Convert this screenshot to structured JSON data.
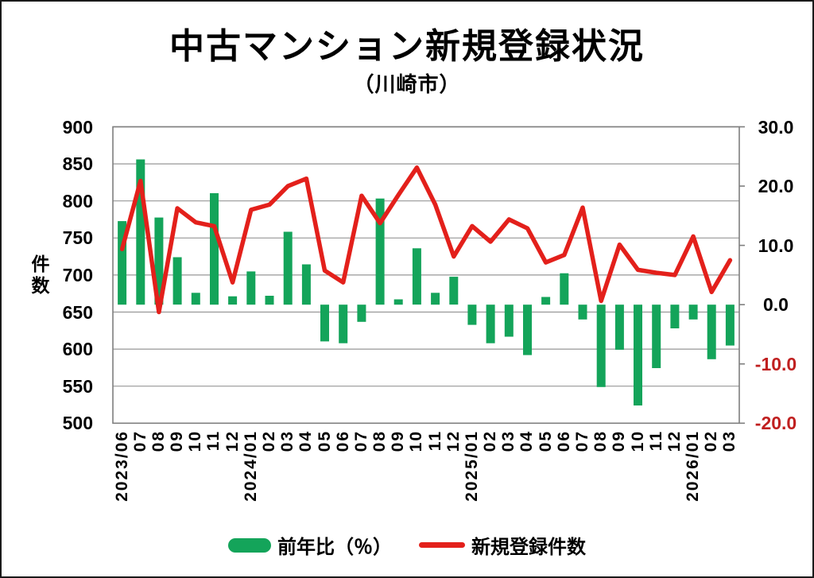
{
  "title": "中古マンション新規登録状況",
  "subtitle": "（川崎市）",
  "colors": {
    "bar_green": "#14a45a",
    "line_red": "#e3201b",
    "negative_tick_red": "#c02020",
    "gridline": "#979797",
    "plot_border": "#7f7f7f"
  },
  "left_axis": {
    "label": "件数",
    "tick_labels": [
      "900",
      "850",
      "800",
      "750",
      "700",
      "650",
      "600",
      "550",
      "500"
    ],
    "min": 500,
    "max": 900
  },
  "right_axis": {
    "tick_labels": [
      "30.0",
      "20.0",
      "10.0",
      "0.0",
      "-10.0",
      "-20.0"
    ],
    "tick_values": [
      30,
      20,
      10,
      0,
      -10,
      -20
    ],
    "min": -20,
    "max": 30
  },
  "legend": [
    {
      "label": "前年比（％）",
      "type": "bar"
    },
    {
      "label": "新規登録件数",
      "type": "line"
    }
  ],
  "chart_data": {
    "type": "bar+line combo",
    "categories": [
      "2023/06",
      "07",
      "08",
      "09",
      "10",
      "11",
      "12",
      "2024/01",
      "02",
      "03",
      "04",
      "05",
      "06",
      "07",
      "08",
      "09",
      "10",
      "11",
      "12",
      "2025/01",
      "02",
      "03",
      "04",
      "05",
      "06",
      "07",
      "08",
      "09",
      "10",
      "11",
      "12",
      "2026/01",
      "02",
      "03"
    ],
    "series": [
      {
        "name": "前年比（％）",
        "type": "bar",
        "axis": "right",
        "values": [
          14.1,
          24.5,
          14.7,
          8.0,
          2.0,
          18.8,
          1.4,
          5.6,
          1.5,
          12.3,
          6.8,
          -6.2,
          -6.5,
          -2.9,
          17.9,
          0.9,
          9.5,
          2.0,
          4.7,
          -3.4,
          -6.5,
          -5.4,
          -8.5,
          1.3,
          5.3,
          -2.5,
          -13.9,
          -7.6,
          -17.0,
          -10.7,
          -4.0,
          -2.5,
          -9.2,
          -6.9
        ]
      },
      {
        "name": "新規登録件数",
        "type": "line",
        "axis": "left",
        "values": [
          735,
          827,
          650,
          790,
          771,
          766,
          690,
          788,
          795,
          820,
          830,
          706,
          690,
          807,
          770,
          808,
          845,
          795,
          725,
          766,
          745,
          775,
          763,
          717,
          727,
          791,
          665,
          741,
          707,
          703,
          700,
          752,
          677,
          720
        ]
      }
    ],
    "left_ylim": [
      500,
      900
    ],
    "right_ylim": [
      -20.0,
      30.0
    ],
    "grid": "horizontal, every 50 on left axis",
    "legend_position": "bottom center",
    "x_tick_rotation": -90
  }
}
